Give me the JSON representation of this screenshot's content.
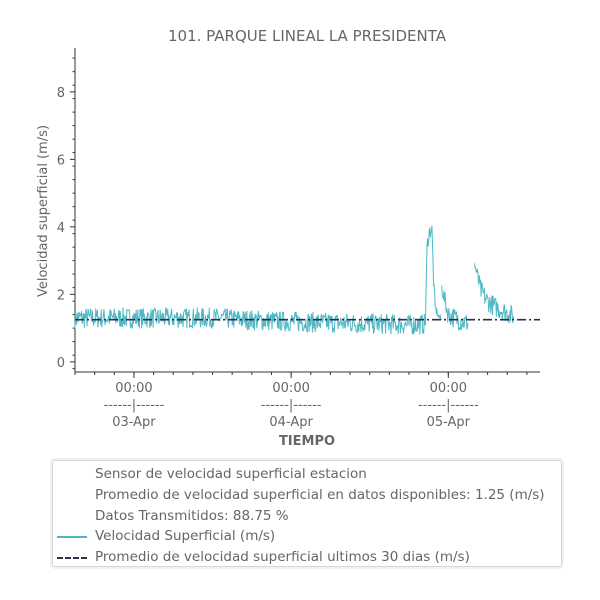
{
  "chart_data": {
    "type": "line",
    "title": "101. PARQUE LINEAL LA PRESIDENTA",
    "xlabel": "TIEMPO",
    "ylabel": "Velocidad superficial (m/s)",
    "xlim": [
      "2023-04-02T15:00",
      "2023-04-05T14:00"
    ],
    "ylim": [
      -0.3,
      9.3
    ],
    "yticks": [
      0,
      2,
      4,
      6,
      8
    ],
    "xticks": [
      {
        "x": "2023-04-03T00:00",
        "time": "00:00",
        "sep": "------|------",
        "date": "03-Apr"
      },
      {
        "x": "2023-04-04T00:00",
        "time": "00:00",
        "sep": "------|------",
        "date": "04-Apr"
      },
      {
        "x": "2023-04-05T00:00",
        "time": "00:00",
        "sep": "------|------",
        "date": "05-Apr"
      }
    ],
    "grid": false,
    "legend_position": "below",
    "colors": {
      "series": "#4fb8c4",
      "average": "#2b2f4f",
      "text": "#666666",
      "axis": "#333333"
    },
    "series": [
      {
        "name": "Velocidad Superficial (m/s)",
        "style": "solid",
        "segments": [
          {
            "x": [
              "2023-04-02T15:00",
              "2023-04-02T20:00",
              "2023-04-03T04:00",
              "2023-04-03T12:00",
              "2023-04-03T20:00",
              "2023-04-04T04:00",
              "2023-04-04T12:00",
              "2023-04-04T18:00",
              "2023-04-04T20:30"
            ],
            "y": [
              1.3,
              1.3,
              1.3,
              1.3,
              1.22,
              1.17,
              1.13,
              1.1,
              1.12
            ],
            "band": [
              0.32,
              0.3,
              0.3,
              0.3,
              0.3,
              0.3,
              0.3,
              0.3,
              0.3
            ]
          },
          {
            "x": [
              "2023-04-04T20:30",
              "2023-04-04T20:45",
              "2023-04-04T21:00",
              "2023-04-04T21:30",
              "2023-04-04T21:45",
              "2023-04-04T22:00",
              "2023-04-04T22:30",
              "2023-04-04T23:00"
            ],
            "y": [
              1.12,
              3.4,
              3.8,
              3.95,
              2.4,
              1.6,
              1.35,
              1.25
            ],
            "band": [
              0.1,
              0.15,
              0.3,
              0.15,
              0.2,
              0.15,
              0.1,
              0.1
            ]
          },
          {
            "x": [
              "2023-04-04T23:00",
              "2023-04-05T00:00",
              "2023-04-05T02:00",
              "2023-04-05T03:00"
            ],
            "y": [
              2.2,
              1.4,
              1.2,
              1.15
            ],
            "band": [
              0.2,
              0.3,
              0.3,
              0.3
            ]
          },
          {
            "x": [
              "2023-04-05T04:00",
              "2023-04-05T05:00",
              "2023-04-05T06:00",
              "2023-04-05T07:00",
              "2023-04-05T08:00",
              "2023-04-05T09:00",
              "2023-04-05T10:00"
            ],
            "y": [
              2.9,
              2.1,
              1.8,
              1.65,
              1.55,
              1.45,
              1.35
            ],
            "band": [
              0.2,
              0.3,
              0.3,
              0.3,
              0.3,
              0.3,
              0.3
            ]
          }
        ]
      },
      {
        "name": "Promedio de velocidad superficial ultimos 30 dias (m/s)",
        "style": "dashdot",
        "x": [
          "2023-04-02T15:00",
          "2023-04-05T14:00"
        ],
        "y": [
          1.25,
          1.25
        ]
      }
    ]
  },
  "legend": {
    "info_lines": [
      "Sensor de velocidad superficial estacion",
      "Promedio de velocidad superficial en datos disponibles: 1.25 (m/s)",
      "Datos Transmitidos: 88.75 %"
    ],
    "series_labels": [
      "Velocidad Superficial (m/s)",
      "Promedio de velocidad superficial ultimos 30 dias (m/s)"
    ]
  }
}
